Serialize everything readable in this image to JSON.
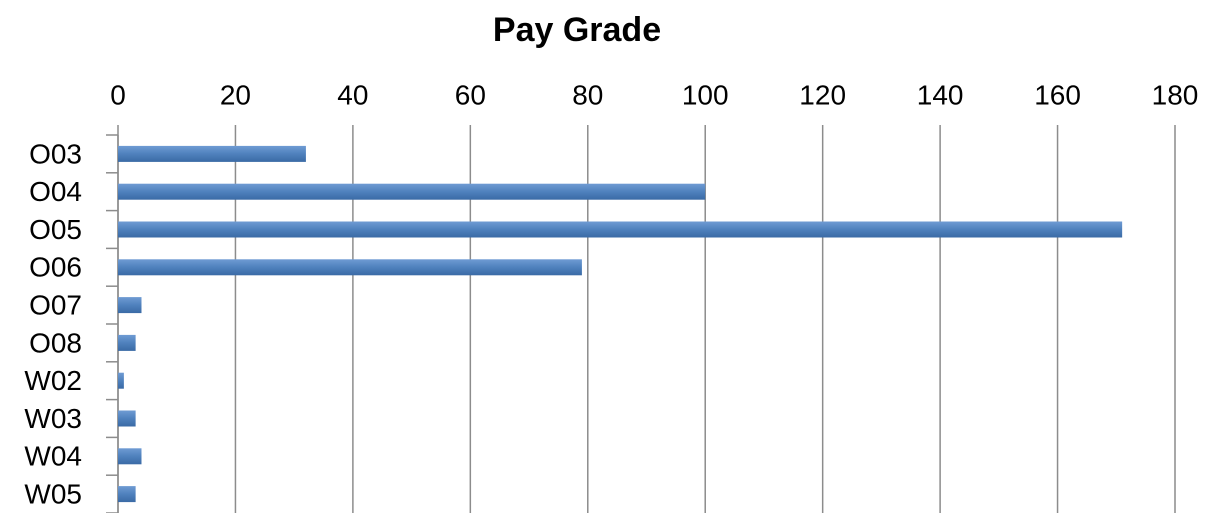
{
  "chart_data": {
    "type": "hbar",
    "title": "Pay Grade",
    "categories": [
      "O03",
      "O04",
      "O05",
      "O06",
      "O07",
      "O08",
      "W02",
      "W03",
      "W04",
      "W05"
    ],
    "values": [
      32,
      100,
      171,
      79,
      4,
      3,
      1,
      3,
      4,
      3
    ],
    "color": "#4f81bd",
    "xlim": [
      0,
      180
    ],
    "xticks": [
      0,
      20,
      40,
      60,
      80,
      100,
      120,
      140,
      160,
      180
    ],
    "grid": true
  }
}
